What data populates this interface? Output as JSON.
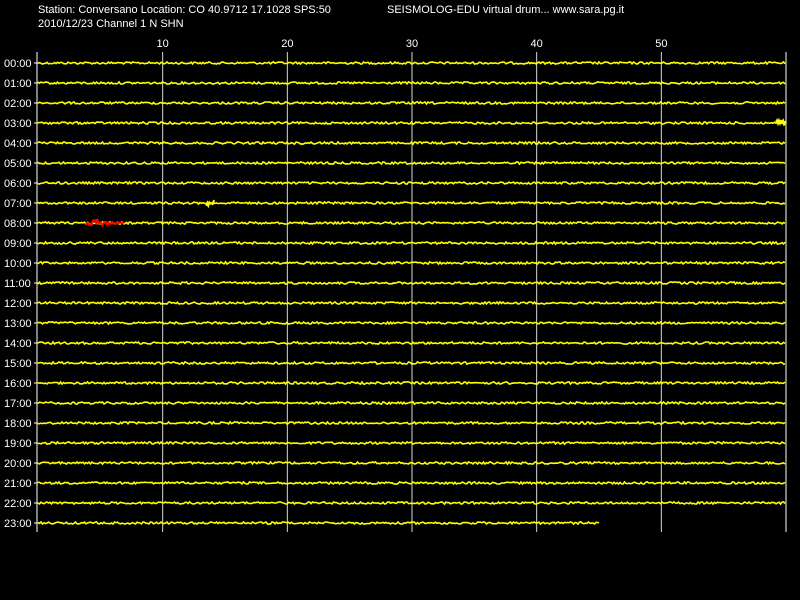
{
  "header": {
    "station_line": "Station: Conversano Location: CO 40.9712 17.1028 SPS:50",
    "date_line": "2010/12/23  Channel 1 N SHN",
    "title": "SEISMOLOG-EDU virtual drum... www.sara.pg.it"
  },
  "colors": {
    "background": "#000000",
    "text": "#ffffff",
    "grid": "#ffffff",
    "trace": "#ffff00",
    "event": "#ff0000"
  },
  "chart_data": {
    "type": "line",
    "description_units": "minutes within each hourly row",
    "x_ticks": [
      10,
      20,
      30,
      40,
      50
    ],
    "xlim": [
      0,
      60
    ],
    "grid": true,
    "rows": [
      "00:00",
      "01:00",
      "02:00",
      "03:00",
      "04:00",
      "05:00",
      "06:00",
      "07:00",
      "08:00",
      "09:00",
      "10:00",
      "11:00",
      "12:00",
      "13:00",
      "14:00",
      "15:00",
      "16:00",
      "17:00",
      "18:00",
      "19:00",
      "20:00",
      "21:00",
      "22:00",
      "23:00"
    ],
    "last_row_end_minute": 45,
    "events": [
      {
        "row": "08:00",
        "start_minute": 3.8,
        "end_minute": 7.0,
        "peak_minute": 4.8,
        "color": "red"
      },
      {
        "row": "07:00",
        "start_minute": 13.5,
        "end_minute": 14.2,
        "peak_minute": 13.8,
        "color": "yellow"
      },
      {
        "row": "03:00",
        "start_minute": 59.2,
        "end_minute": 60,
        "peak_minute": 59.5,
        "color": "yellow"
      }
    ]
  }
}
